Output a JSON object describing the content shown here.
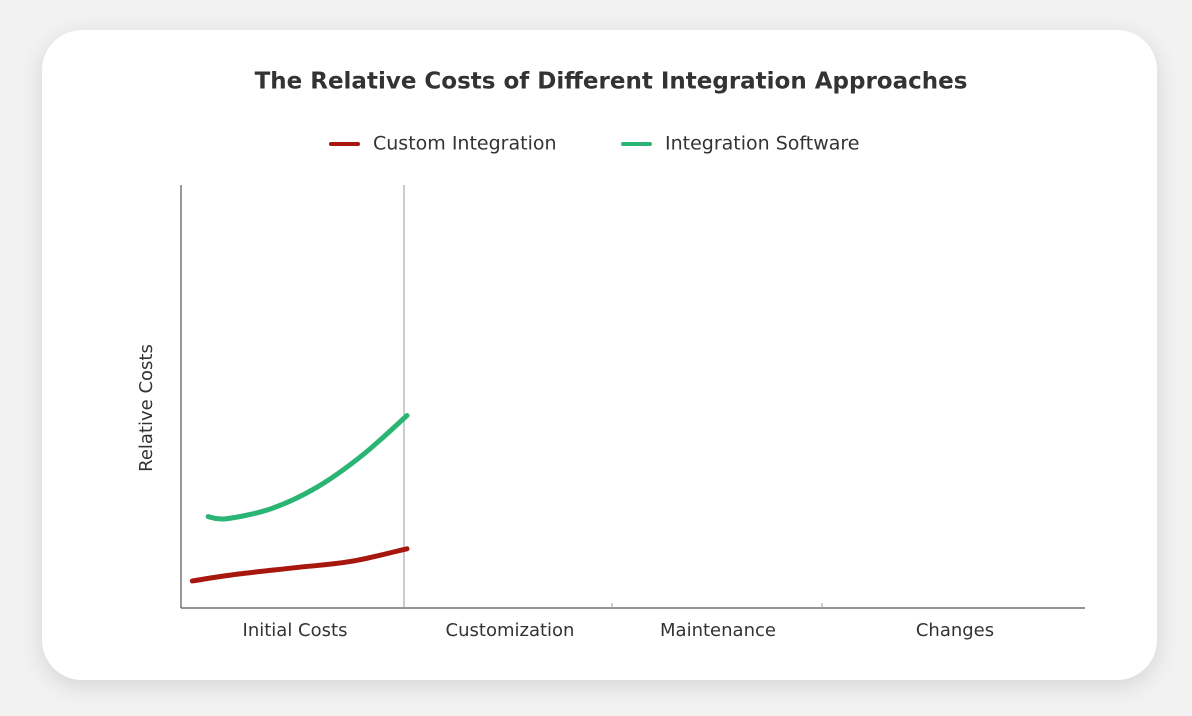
{
  "chart_data": {
    "type": "line",
    "title": "The Relative Costs of Different Integration Approaches",
    "y_label": "Relative Costs",
    "categories": [
      "Initial Costs",
      "Customization",
      "Maintenance",
      "Changes"
    ],
    "xlim": [
      0,
      4
    ],
    "ylim": [
      0,
      100
    ],
    "series": [
      {
        "name": "Custom Integration",
        "color": "#a8170e",
        "x": [
          0.05,
          0.25,
          0.5,
          0.75,
          1.0
        ],
        "values": [
          6.4,
          8,
          9.5,
          11,
          14
        ]
      },
      {
        "name": "Integration Software",
        "color": "#2ab574",
        "x": [
          0.12,
          0.2,
          0.4,
          0.6,
          0.8,
          1.0
        ],
        "values": [
          21.6,
          21.1,
          23.5,
          28.5,
          36,
          45.5
        ]
      }
    ]
  }
}
